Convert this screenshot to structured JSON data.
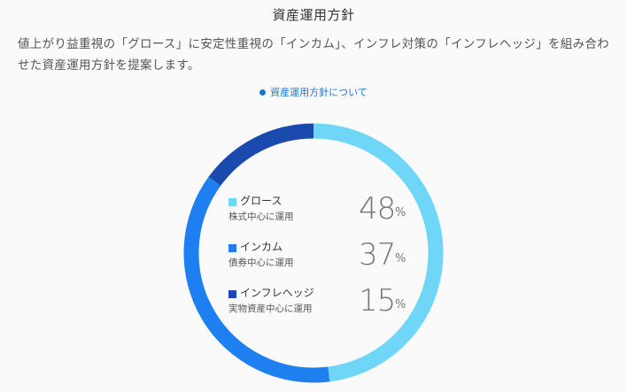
{
  "section": {
    "title": "資産運用方針",
    "description": "値上がり益重視の「グロース」に安定性重視の「インカム」、インフレ対策の「インフレヘッジ」を組み合わせた資産運用方針を提案します。",
    "link_label": "資産運用方針について"
  },
  "allocation": {
    "items": [
      {
        "name": "グロース",
        "sub": "株式中心に運用",
        "percent": 48,
        "percent_label": "48",
        "unit": "%",
        "color": "#6fd6f7"
      },
      {
        "name": "インカム",
        "sub": "債券中心に運用",
        "percent": 37,
        "percent_label": "37",
        "unit": "%",
        "color": "#1e80f0"
      },
      {
        "name": "インフレヘッジ",
        "sub": "実物資産中心に運用",
        "percent": 15,
        "percent_label": "15",
        "unit": "%",
        "color": "#1a4aad"
      }
    ]
  }
}
